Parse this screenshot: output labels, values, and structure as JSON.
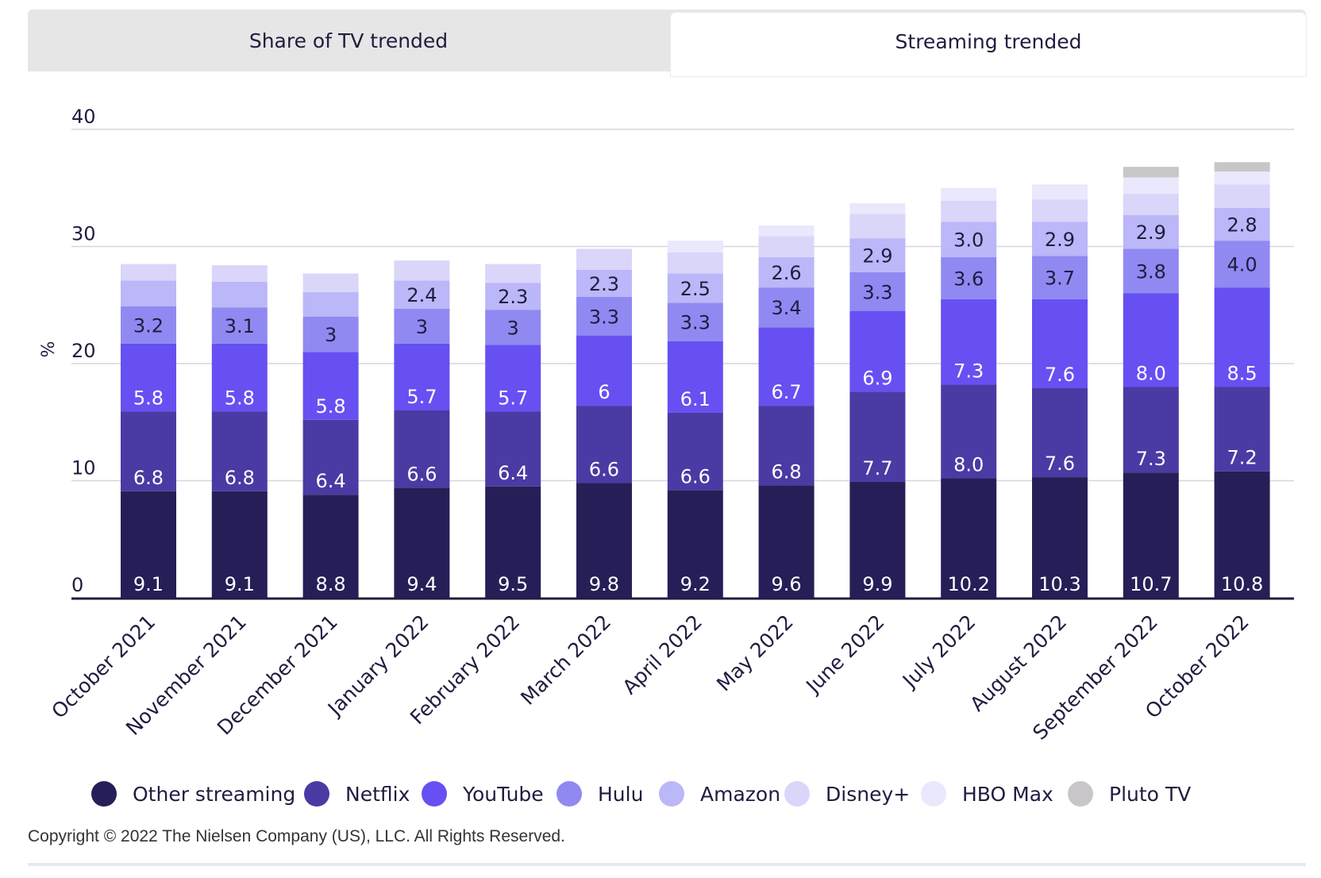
{
  "tabs": [
    {
      "label": "Share of TV trended",
      "active": false
    },
    {
      "label": "Streaming trended",
      "active": true
    }
  ],
  "chart_data": {
    "type": "bar",
    "stacked": true,
    "ylabel": "%",
    "ylim": [
      0,
      40
    ],
    "yticks": [
      0,
      10,
      20,
      30,
      40
    ],
    "grid": true,
    "legend_position": "bottom",
    "categories": [
      "October 2021",
      "November 2021",
      "December 2021",
      "January 2022",
      "February 2022",
      "March 2022",
      "April 2022",
      "May 2022",
      "June 2022",
      "July 2022",
      "August 2022",
      "September 2022",
      "October 2022"
    ],
    "series": [
      {
        "name": "Other streaming",
        "color": "#261f57",
        "label_color": "#ffffff",
        "values": [
          9.1,
          9.1,
          8.8,
          9.4,
          9.5,
          9.8,
          9.2,
          9.6,
          9.9,
          10.2,
          10.3,
          10.7,
          10.8
        ],
        "labels": [
          "9.1",
          "9.1",
          "8.8",
          "9.4",
          "9.5",
          "9.8",
          "9.2",
          "9.6",
          "9.9",
          "10.2",
          "10.3",
          "10.7",
          "10.8"
        ]
      },
      {
        "name": "Netflix",
        "color": "#4a3aa3",
        "label_color": "#ffffff",
        "values": [
          6.8,
          6.8,
          6.4,
          6.6,
          6.4,
          6.6,
          6.6,
          6.8,
          7.7,
          8.0,
          7.6,
          7.3,
          7.2
        ],
        "labels": [
          "6.8",
          "6.8",
          "6.4",
          "6.6",
          "6.4",
          "6.6",
          "6.6",
          "6.8",
          "7.7",
          "8.0",
          "7.6",
          "7.3",
          "7.2"
        ]
      },
      {
        "name": "YouTube",
        "color": "#6650f2",
        "label_color": "#ffffff",
        "values": [
          5.8,
          5.8,
          5.8,
          5.7,
          5.7,
          6,
          6.1,
          6.7,
          6.9,
          7.3,
          7.6,
          8.0,
          8.5
        ],
        "labels": [
          "5.8",
          "5.8",
          "5.8",
          "5.7",
          "5.7",
          "6",
          "6.1",
          "6.7",
          "6.9",
          "7.3",
          "7.6",
          "8.0",
          "8.5"
        ]
      },
      {
        "name": "Hulu",
        "color": "#9089f2",
        "label_color": "#1f1d3f",
        "values": [
          3.2,
          3.1,
          3,
          3,
          3,
          3.3,
          3.3,
          3.4,
          3.3,
          3.6,
          3.7,
          3.8,
          4.0
        ],
        "labels": [
          "3.2",
          "3.1",
          "3",
          "3",
          "3",
          "3.3",
          "3.3",
          "3.4",
          "3.3",
          "3.6",
          "3.7",
          "3.8",
          "4.0"
        ]
      },
      {
        "name": "Amazon",
        "color": "#bbb7f8",
        "label_color": "#1f1d3f",
        "values": [
          2.2,
          2.2,
          2.1,
          2.4,
          2.3,
          2.3,
          2.5,
          2.6,
          2.9,
          3.0,
          2.9,
          2.9,
          2.8
        ],
        "labels": [
          "",
          "",
          "",
          "2.4",
          "2.3",
          "2.3",
          "2.5",
          "2.6",
          "2.9",
          "3.0",
          "2.9",
          "2.9",
          "2.8"
        ]
      },
      {
        "name": "Disney+",
        "color": "#d9d6fa",
        "label_color": "#1f1d3f",
        "values": [
          1.4,
          1.4,
          1.6,
          1.7,
          1.6,
          1.8,
          1.8,
          1.8,
          2.1,
          1.8,
          1.9,
          1.8,
          2.0
        ],
        "labels": [
          "",
          "",
          "",
          "",
          "",
          "",
          "",
          "",
          "",
          "",
          "",
          "",
          ""
        ]
      },
      {
        "name": "HBO Max",
        "color": "#eae8fc",
        "label_color": "#1f1d3f",
        "values": [
          0,
          0,
          0,
          0,
          0,
          0,
          1.0,
          0.9,
          0.9,
          1.1,
          1.3,
          1.4,
          1.1
        ],
        "labels": [
          "",
          "",
          "",
          "",
          "",
          "",
          "",
          "",
          "",
          "",
          "",
          "",
          ""
        ]
      },
      {
        "name": "Pluto TV",
        "color": "#c8c6c8",
        "label_color": "#1f1d3f",
        "values": [
          0,
          0,
          0,
          0,
          0,
          0,
          0,
          0,
          0,
          0,
          0,
          0.9,
          0.8
        ],
        "labels": [
          "",
          "",
          "",
          "",
          "",
          "",
          "",
          "",
          "",
          "",
          "",
          "",
          ""
        ]
      }
    ]
  },
  "copyright": "Copyright © 2022 The Nielsen Company (US), LLC. All Rights Reserved."
}
